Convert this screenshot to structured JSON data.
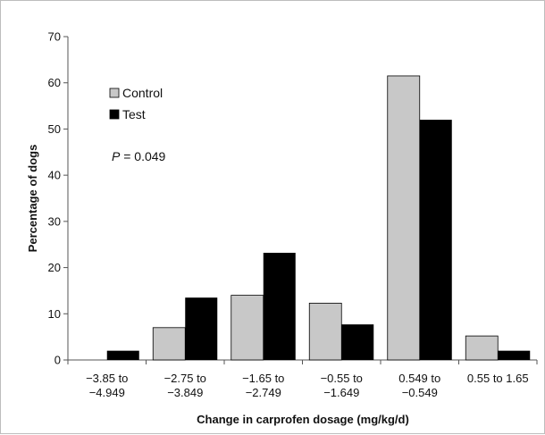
{
  "chart_data": {
    "type": "bar",
    "xlabel": "Change in carprofen dosage (mg/kg/d)",
    "ylabel": "Percentage of dogs",
    "ylim": [
      0,
      70
    ],
    "yticks": [
      0,
      10,
      20,
      30,
      40,
      50,
      60,
      70
    ],
    "categories": [
      [
        "−3.85 to",
        "−4.949"
      ],
      [
        "−2.75 to",
        "−3.849"
      ],
      [
        "−1.65 to",
        "−2.749"
      ],
      [
        "−0.55 to",
        "−1.649"
      ],
      [
        "0.549 to",
        "−0.549"
      ],
      [
        "0.55 to 1.65"
      ]
    ],
    "series": [
      {
        "name": "Control",
        "color": "#c8c8c8",
        "values": [
          0,
          7,
          14,
          12.3,
          61.5,
          5.2
        ]
      },
      {
        "name": "Test",
        "color": "#000000",
        "values": [
          2,
          13.5,
          23.2,
          7.7,
          52,
          2
        ]
      }
    ],
    "legend": "top-left",
    "annotation": {
      "label": "P",
      "rest": " = 0.049"
    },
    "grid": false
  }
}
